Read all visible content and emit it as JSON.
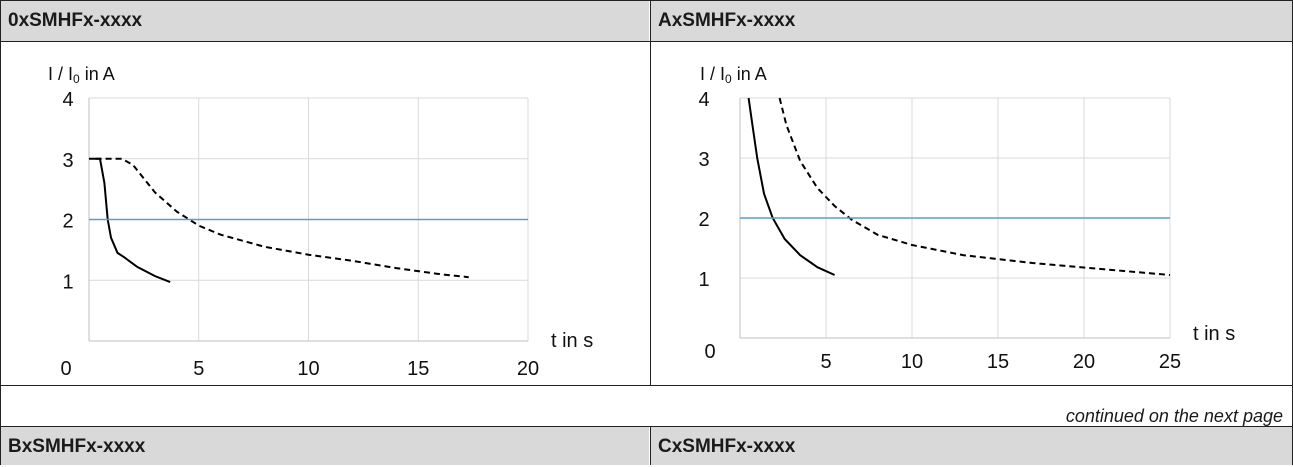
{
  "table": {
    "header_top_left": "0xSMHFx-xxxx",
    "header_top_right": "AxSMHFx-xxxx",
    "header_bottom_left": "BxSMHFx-xxxx",
    "header_bottom_right": "CxSMHFx-xxxx",
    "continued_note": "continued on the next page"
  },
  "chart_data": [
    {
      "type": "line",
      "title": "0xSMHFx-xxxx",
      "ylabel": "I / I0 in A",
      "ylabel_main": "I / I",
      "ylabel_sub": "0",
      "ylabel_tail": " in A",
      "xlabel": "t in s",
      "xlim": [
        0,
        20
      ],
      "ylim": [
        0,
        4
      ],
      "x_ticks": [
        0,
        5,
        10,
        15,
        20
      ],
      "y_ticks": [
        1,
        2,
        3,
        4
      ],
      "x_tick_labels": [
        "0",
        "5",
        "10",
        "15",
        "20"
      ],
      "y_tick_labels": [
        "1",
        "2",
        "3",
        "4"
      ],
      "grid": true,
      "series": [
        {
          "style": "solid",
          "color": "#000000",
          "x": [
            0,
            0.5,
            0.7,
            0.85,
            1.0,
            1.3,
            1.6,
            2.2,
            3.0,
            3.7
          ],
          "y": [
            3.0,
            3.0,
            2.6,
            2.0,
            1.7,
            1.45,
            1.38,
            1.22,
            1.07,
            0.97
          ]
        },
        {
          "style": "dashed",
          "color": "#000000",
          "x": [
            0.3,
            1.5,
            2.0,
            3.0,
            4.0,
            5.0,
            6.0,
            8.0,
            10.0,
            12.0,
            14.0,
            16.0,
            17.3
          ],
          "y": [
            3.0,
            3.0,
            2.9,
            2.45,
            2.13,
            1.9,
            1.75,
            1.55,
            1.42,
            1.32,
            1.2,
            1.1,
            1.05
          ]
        },
        {
          "style": "solid",
          "color": "#5b9bd5",
          "x": [
            0,
            20
          ],
          "y": [
            2.0,
            2.0
          ]
        }
      ]
    },
    {
      "type": "line",
      "title": "AxSMHFx-xxxx",
      "ylabel": "I / I0 in A",
      "ylabel_main": "I / I",
      "ylabel_sub": "0",
      "ylabel_tail": " in A",
      "xlabel": "t in s",
      "xlim": [
        0,
        25
      ],
      "ylim": [
        0,
        4
      ],
      "x_ticks": [
        0,
        5,
        10,
        15,
        20,
        25
      ],
      "y_ticks": [
        1,
        2,
        3,
        4
      ],
      "x_tick_labels": [
        "0",
        "5",
        "10",
        "15",
        "20",
        "25"
      ],
      "y_tick_labels": [
        "1",
        "2",
        "3",
        "4"
      ],
      "grid": true,
      "series": [
        {
          "style": "solid",
          "color": "#000000",
          "x": [
            0.5,
            0.7,
            1.0,
            1.4,
            1.9,
            2.6,
            3.5,
            4.5,
            5.5
          ],
          "y": [
            4.0,
            3.6,
            3.0,
            2.4,
            2.0,
            1.65,
            1.38,
            1.18,
            1.05
          ]
        },
        {
          "style": "dashed",
          "color": "#000000",
          "x": [
            2.3,
            2.7,
            3.5,
            4.5,
            5.5,
            6.5,
            8.0,
            10.0,
            13.0,
            17.0,
            21.0,
            25.0
          ],
          "y": [
            4.0,
            3.55,
            2.95,
            2.5,
            2.2,
            1.97,
            1.72,
            1.55,
            1.38,
            1.25,
            1.15,
            1.05
          ]
        },
        {
          "style": "solid",
          "color": "#5b9bd5",
          "x": [
            0,
            25
          ],
          "y": [
            2.0,
            2.0
          ]
        }
      ]
    }
  ]
}
